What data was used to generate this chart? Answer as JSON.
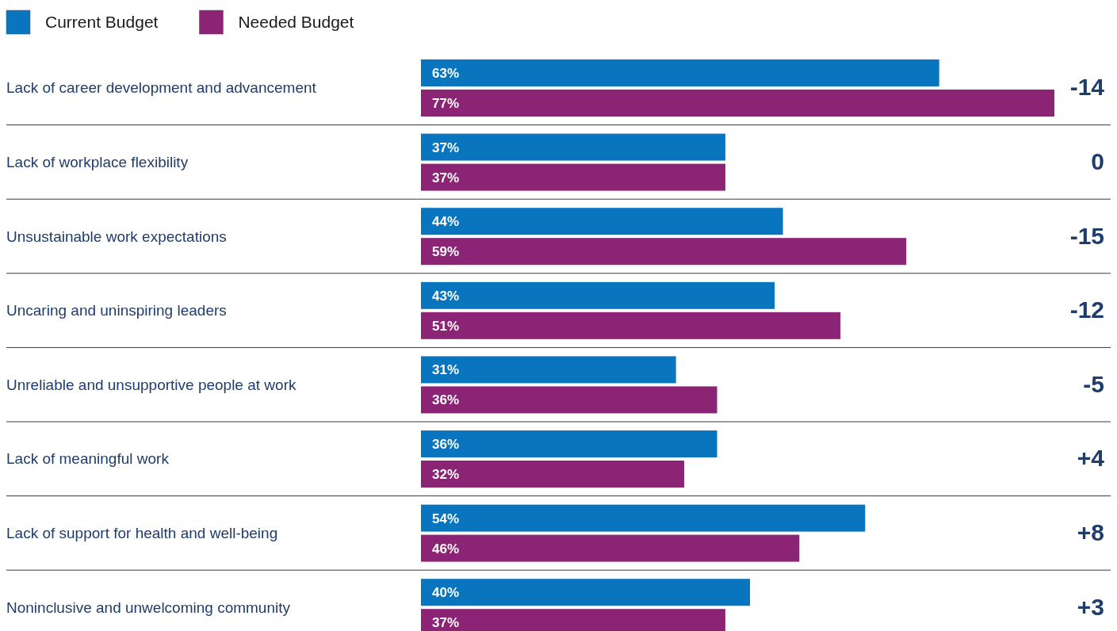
{
  "chart_data": {
    "type": "bar",
    "orientation": "horizontal",
    "categories": [
      "Lack of career development and advancement",
      "Lack of workplace flexibility",
      "Unsustainable work expectations",
      "Uncaring and uninspiring leaders",
      "Unreliable and unsupportive people at work",
      "Lack of meaningful work",
      "Lack of support for health and well-being",
      "Noninclusive and unwelcoming community"
    ],
    "series": [
      {
        "name": "Current Budget",
        "color": "#0a75bf",
        "values": [
          63,
          37,
          44,
          43,
          31,
          36,
          54,
          40
        ],
        "value_labels": [
          "63%",
          "37%",
          "44%",
          "43%",
          "31%",
          "36%",
          "54%",
          "40%"
        ]
      },
      {
        "name": "Needed Budget",
        "color": "#8b2474",
        "values": [
          77,
          37,
          59,
          51,
          36,
          32,
          46,
          37
        ],
        "value_labels": [
          "77%",
          "37%",
          "59%",
          "51%",
          "36%",
          "32%",
          "46%",
          "37%"
        ]
      }
    ],
    "tick_labels": "y",
    "legend": "top left",
    "annotations": [
      "-14",
      "0",
      "-15",
      "-12",
      "-5",
      "+4",
      "+8",
      "+3"
    ]
  }
}
